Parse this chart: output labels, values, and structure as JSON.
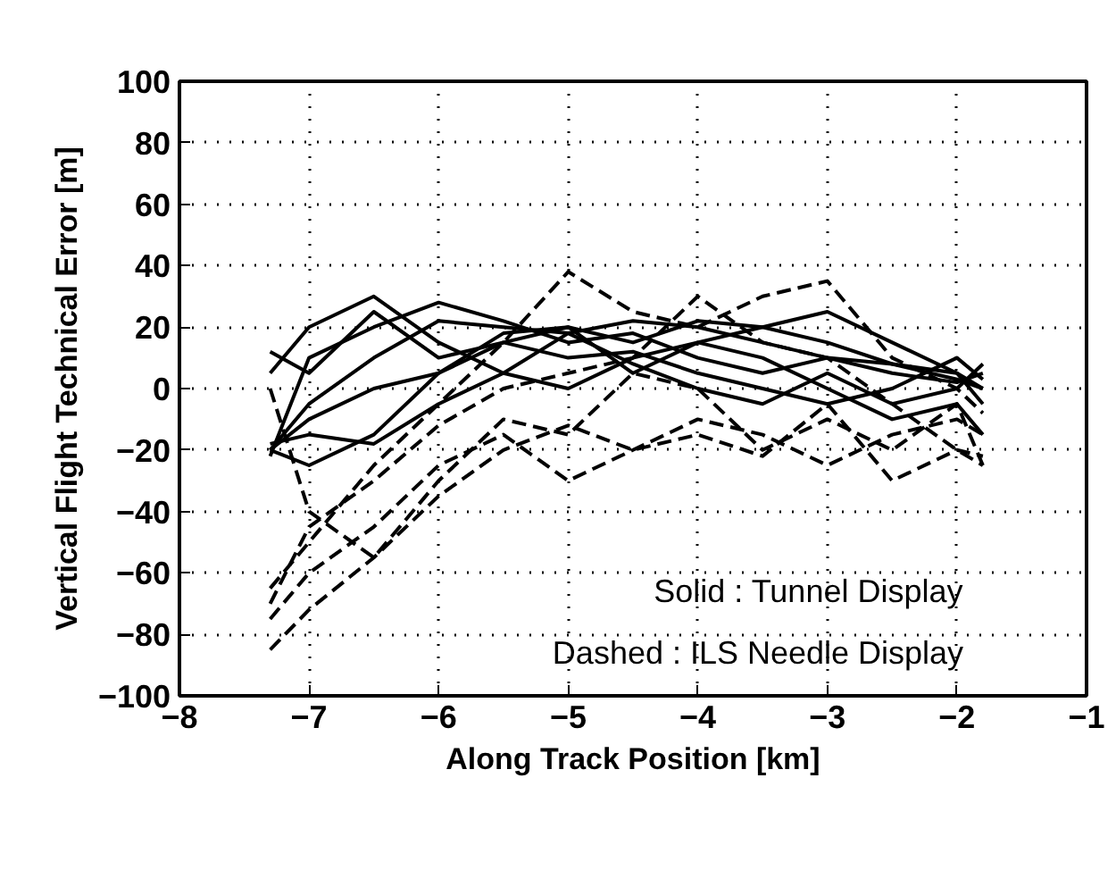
{
  "chart_data": {
    "type": "line",
    "xlabel": "Along Track Position [km]",
    "ylabel": "Vertical Flight Technical Error [m]",
    "x": [
      -7.3,
      -7,
      -6.5,
      -6,
      -5.5,
      -5,
      -4.5,
      -4,
      -3.5,
      -3,
      -2.5,
      -2,
      -1.8
    ],
    "xlim": [
      -8,
      -1
    ],
    "xticks": [
      -8,
      -7,
      -6,
      -5,
      -4,
      -3,
      -2,
      -1
    ],
    "ylim": [
      -100,
      100
    ],
    "yticks": [
      -100,
      -80,
      -60,
      -40,
      -20,
      0,
      20,
      40,
      60,
      80,
      100
    ],
    "grid": true,
    "marker": "none",
    "series": [
      {
        "color": "#000000",
        "line_style": "solid",
        "values": [
          -20,
          -5,
          10,
          22,
          20,
          18,
          22,
          20,
          15,
          10,
          5,
          2,
          5
        ]
      },
      {
        "color": "#000000",
        "line_style": "solid",
        "values": [
          12,
          5,
          25,
          10,
          15,
          20,
          15,
          22,
          20,
          15,
          8,
          3,
          0
        ]
      },
      {
        "color": "#000000",
        "line_style": "solid",
        "values": [
          -22,
          10,
          20,
          28,
          22,
          15,
          18,
          10,
          5,
          10,
          8,
          5,
          -5
        ]
      },
      {
        "color": "#000000",
        "line_style": "solid",
        "values": [
          -20,
          -25,
          -15,
          5,
          15,
          10,
          12,
          5,
          0,
          -5,
          0,
          10,
          3
        ]
      },
      {
        "color": "#000000",
        "line_style": "solid",
        "values": [
          5,
          20,
          30,
          15,
          5,
          18,
          8,
          0,
          -5,
          5,
          -5,
          0,
          8
        ]
      },
      {
        "color": "#000000",
        "line_style": "solid",
        "values": [
          -20,
          -10,
          0,
          5,
          18,
          20,
          5,
          15,
          10,
          0,
          -10,
          -5,
          -15
        ]
      },
      {
        "color": "#000000",
        "line_style": "solid",
        "values": [
          -18,
          -15,
          -18,
          -5,
          5,
          0,
          10,
          15,
          20,
          25,
          15,
          5,
          0
        ]
      },
      {
        "color": "#000000",
        "line_style": "dashed",
        "values": [
          -65,
          -50,
          -25,
          -5,
          15,
          38,
          25,
          20,
          30,
          35,
          10,
          0,
          -8
        ]
      },
      {
        "color": "#000000",
        "line_style": "dashed",
        "values": [
          -70,
          -45,
          -30,
          -12,
          0,
          5,
          10,
          30,
          15,
          10,
          -5,
          -20,
          -25
        ]
      },
      {
        "color": "#000000",
        "line_style": "dashed",
        "values": [
          -85,
          -72,
          -55,
          -35,
          -20,
          -12,
          -20,
          -15,
          -22,
          -5,
          -30,
          -20,
          -22
        ]
      },
      {
        "color": "#000000",
        "line_style": "dashed",
        "values": [
          -75,
          -60,
          -45,
          -25,
          -15,
          -30,
          -20,
          -10,
          -15,
          -25,
          -15,
          -10,
          -15
        ]
      },
      {
        "color": "#000000",
        "line_style": "dashed",
        "values": [
          0,
          -40,
          -55,
          -30,
          -10,
          -15,
          5,
          0,
          -20,
          -10,
          -20,
          -5,
          -25
        ]
      }
    ],
    "annotations": [
      "Solid : Tunnel Display",
      "Dashed : ILS Needle Display"
    ]
  }
}
